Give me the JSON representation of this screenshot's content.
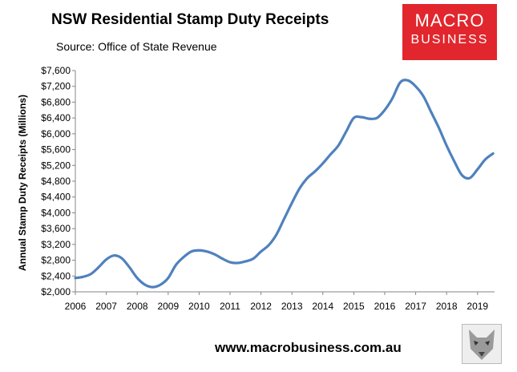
{
  "title": "NSW Residential Stamp Duty Receipts",
  "subtitle": "Source: Office of State Revenue",
  "logo": {
    "line1": "MACRO",
    "line2": "BUSINESS"
  },
  "footer_url": "www.macrobusiness.com.au",
  "chart_data": {
    "type": "line",
    "title": "NSW Residential Stamp Duty Receipts",
    "subtitle": "Source: Office of State Revenue",
    "xlabel": "",
    "ylabel": "Annual Stamp Duty Receipts (Millions)",
    "ylim": [
      2000,
      7600
    ],
    "xlim": [
      2006,
      2019.55
    ],
    "y_ticks": [
      2000,
      2400,
      2800,
      3200,
      3600,
      4000,
      4400,
      4800,
      5200,
      5600,
      6000,
      6400,
      6800,
      7200,
      7600
    ],
    "y_tick_labels": [
      "$2,000",
      "$2,400",
      "$2,800",
      "$3,200",
      "$3,600",
      "$4,000",
      "$4,400",
      "$4,800",
      "$5,200",
      "$5,600",
      "$6,000",
      "$6,400",
      "$6,800",
      "$7,200",
      "$7,600"
    ],
    "x_ticks": [
      2006,
      2007,
      2008,
      2009,
      2010,
      2011,
      2012,
      2013,
      2014,
      2015,
      2016,
      2017,
      2018,
      2019
    ],
    "x_tick_labels": [
      "2006",
      "2007",
      "2008",
      "2009",
      "2010",
      "2011",
      "2012",
      "2013",
      "2014",
      "2015",
      "2016",
      "2017",
      "2018",
      "2019"
    ],
    "grid": false,
    "line_color": "#4f81bd",
    "series": [
      {
        "x": [
          2006.0,
          2006.25,
          2006.5,
          2006.75,
          2007.0,
          2007.25,
          2007.5,
          2007.75,
          2008.0,
          2008.25,
          2008.5,
          2008.75,
          2009.0,
          2009.25,
          2009.5,
          2009.75,
          2010.0,
          2010.25,
          2010.5,
          2010.75,
          2011.0,
          2011.25,
          2011.5,
          2011.75,
          2012.0,
          2012.25,
          2012.5,
          2012.75,
          2013.0,
          2013.25,
          2013.5,
          2013.75,
          2014.0,
          2014.25,
          2014.5,
          2014.75,
          2015.0,
          2015.25,
          2015.5,
          2015.75,
          2016.0,
          2016.25,
          2016.5,
          2016.75,
          2017.0,
          2017.25,
          2017.5,
          2017.75,
          2018.0,
          2018.25,
          2018.5,
          2018.75,
          2019.0,
          2019.25,
          2019.5
        ],
        "values": [
          2350,
          2380,
          2450,
          2620,
          2820,
          2920,
          2850,
          2620,
          2350,
          2180,
          2120,
          2180,
          2350,
          2680,
          2880,
          3020,
          3050,
          3020,
          2950,
          2840,
          2750,
          2730,
          2770,
          2840,
          3020,
          3180,
          3450,
          3850,
          4250,
          4620,
          4880,
          5050,
          5250,
          5480,
          5700,
          6050,
          6400,
          6420,
          6380,
          6400,
          6600,
          6900,
          7300,
          7350,
          7200,
          6950,
          6550,
          6150,
          5700,
          5300,
          4950,
          4880,
          5100,
          5350,
          5500
        ]
      }
    ]
  }
}
